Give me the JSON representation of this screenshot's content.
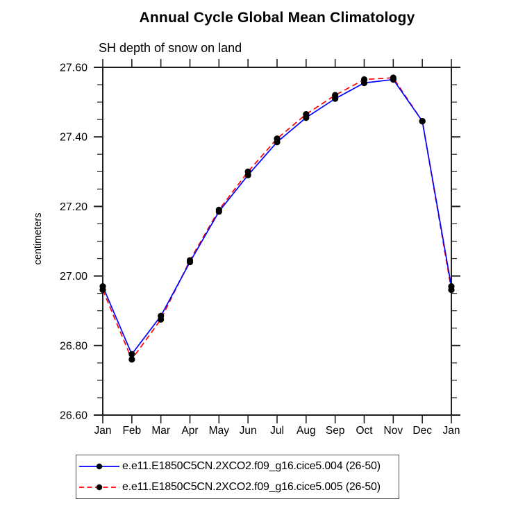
{
  "chart_data": {
    "type": "line",
    "title": "Annual Cycle Global Mean Climatology",
    "subtitle": "SH depth of snow on land",
    "ylabel": "centimeters",
    "xlabel": "",
    "x_tick_labels": [
      "Jan",
      "Feb",
      "Mar",
      "Apr",
      "May",
      "Jun",
      "Jul",
      "Aug",
      "Sep",
      "Oct",
      "Nov",
      "Dec",
      "Jan"
    ],
    "ylim": [
      26.6,
      27.6
    ],
    "y_major_tick_labels": [
      "26.60",
      "26.80",
      "27.00",
      "27.20",
      "27.40",
      "27.60"
    ],
    "y_minor_step": 0.05,
    "grid": false,
    "legend_position": "bottom",
    "axis_color": "#1f1f1f",
    "marker_color": "#000000",
    "series": [
      {
        "name": "e.e11.E1850C5CN.2XCO2.f09_g16.cice5.004 (26-50)",
        "color": "#0000ff",
        "line_style": "solid",
        "marker": "filled-circle",
        "values": [
          26.97,
          26.775,
          26.885,
          27.04,
          27.185,
          27.29,
          27.385,
          27.455,
          27.51,
          27.555,
          27.565,
          27.445,
          26.97
        ]
      },
      {
        "name": "e.e11.E1850C5CN.2XCO2.f09_g16.cice5.005 (26-50)",
        "color": "#ff0000",
        "line_style": "dashed",
        "marker": "filled-circle",
        "values": [
          26.96,
          26.76,
          26.875,
          27.045,
          27.19,
          27.3,
          27.395,
          27.465,
          27.52,
          27.565,
          27.57,
          27.445,
          26.96
        ]
      }
    ]
  }
}
